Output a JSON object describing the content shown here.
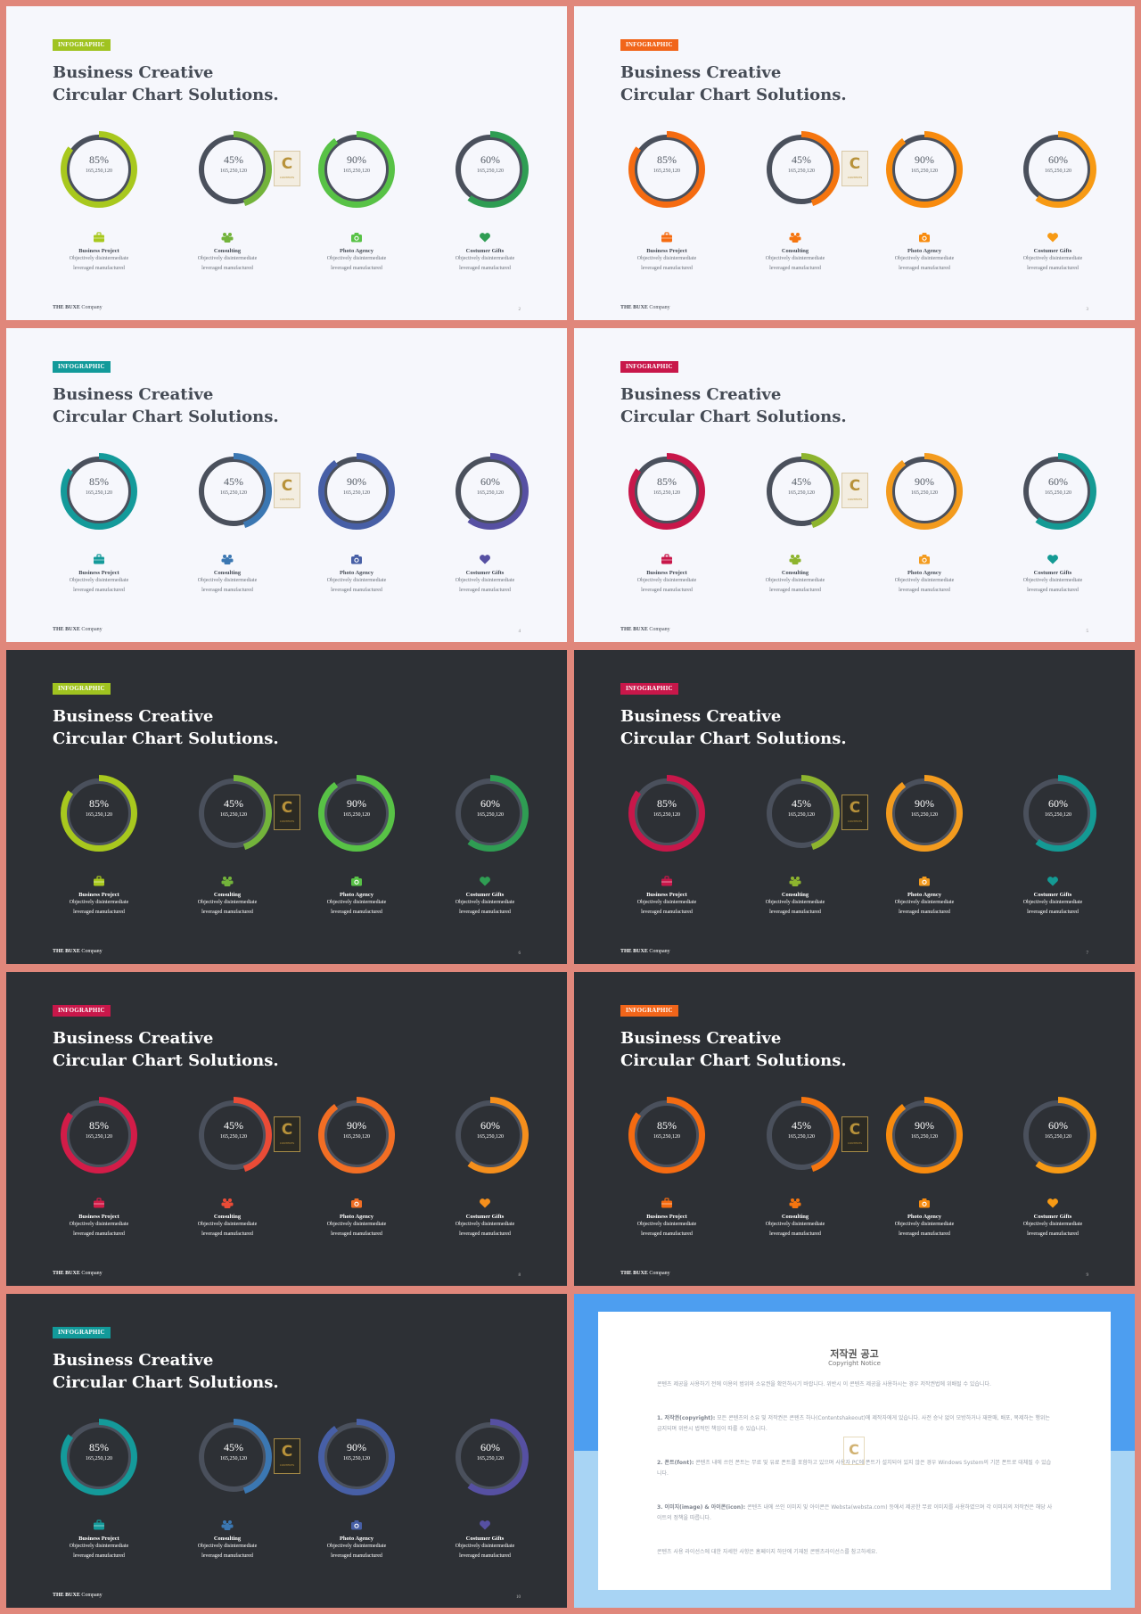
{
  "slides": [
    {
      "badge": "INFOGRAPHIC",
      "theme": "light",
      "page": "2",
      "badge_color": "#a0c320",
      "colors": [
        "#a8c81e",
        "#73b33b",
        "#58c246",
        "#2f9d53"
      ],
      "values": [
        85,
        45,
        90,
        60
      ]
    },
    {
      "badge": "INFOGRAPHIC",
      "theme": "light",
      "page": "3",
      "badge_color": "#f1651a",
      "colors": [
        "#f56b11",
        "#f5750f",
        "#f88b0e",
        "#f79a14"
      ],
      "values": [
        85,
        45,
        90,
        60
      ]
    },
    {
      "badge": "INFOGRAPHIC",
      "theme": "light",
      "page": "4",
      "badge_color": "#129a9a",
      "colors": [
        "#149a9a",
        "#3b77b2",
        "#475fa6",
        "#5650a2"
      ],
      "values": [
        85,
        45,
        90,
        60
      ]
    },
    {
      "badge": "INFOGRAPHIC",
      "theme": "light",
      "page": "5",
      "badge_color": "#c8174a",
      "colors": [
        "#c8174a",
        "#8db42e",
        "#f39b1e",
        "#149a94"
      ],
      "values": [
        85,
        45,
        90,
        60
      ]
    },
    {
      "badge": "INFOGRAPHIC",
      "theme": "dark",
      "page": "6",
      "badge_color": "#a0c320",
      "colors": [
        "#a8c81e",
        "#73b33b",
        "#58c246",
        "#2f9d53"
      ],
      "values": [
        85,
        45,
        90,
        60
      ]
    },
    {
      "badge": "INFOGRAPHIC",
      "theme": "dark",
      "page": "7",
      "badge_color": "#c8174a",
      "colors": [
        "#c8174a",
        "#8db42e",
        "#f39b1e",
        "#149a94"
      ],
      "values": [
        85,
        45,
        90,
        60
      ]
    },
    {
      "badge": "INFOGRAPHIC",
      "theme": "dark",
      "page": "8",
      "badge_color": "#c8174a",
      "colors": [
        "#d21c48",
        "#ea4b36",
        "#f26e24",
        "#f58f1c"
      ],
      "values": [
        85,
        45,
        90,
        60
      ]
    },
    {
      "badge": "INFOGRAPHIC",
      "theme": "dark",
      "page": "9",
      "badge_color": "#f1651a",
      "colors": [
        "#f56b11",
        "#f5750f",
        "#f88b0e",
        "#f79a14"
      ],
      "values": [
        85,
        45,
        90,
        60
      ]
    },
    {
      "badge": "INFOGRAPHIC",
      "theme": "dark",
      "page": "10",
      "badge_color": "#129a9a",
      "colors": [
        "#149a9a",
        "#3b77b2",
        "#475fa6",
        "#5650a2"
      ],
      "values": [
        85,
        45,
        90,
        60
      ]
    }
  ],
  "common": {
    "title_line1": "Business Creative",
    "title_line2": "Circular Chart Solutions.",
    "footer_brand": "THE BUXE",
    "footer_company": "Company",
    "ring_track_color": "#4a505c",
    "logo_letter": "C",
    "logo_word": "CONTENTS",
    "charts": [
      {
        "pct": "85%",
        "sub": "165,250,120"
      },
      {
        "pct": "45%",
        "sub": "165,250,120"
      },
      {
        "pct": "90%",
        "sub": "165,250,120"
      },
      {
        "pct": "60%",
        "sub": "165,250,120"
      }
    ],
    "items": [
      {
        "icon": "briefcase-icon",
        "name": "Business Project",
        "desc1": "Objectively disintermediate",
        "desc2": "leveraged manufactured"
      },
      {
        "icon": "team-icon",
        "name": "Consulting",
        "desc1": "Objectively disintermediate",
        "desc2": "leveraged manufactured"
      },
      {
        "icon": "camera-icon",
        "name": "Photo Agency",
        "desc1": "Objectively disintermediate",
        "desc2": "leveraged manufactured"
      },
      {
        "icon": "heart-icon",
        "name": "Costumer Gifts",
        "desc1": "Objectively disintermediate",
        "desc2": "leveraged manufactured"
      }
    ]
  },
  "notice": {
    "title": "저작권 공고",
    "subtitle": "Copyright Notice",
    "intro": "콘텐츠 제공을 사용하기 전에 이용의 범위와 소유권을 확인하시기 바랍니다. 위반시 이 콘텐츠 제공을 사용하시는 경우 저작권법에 위배될 수 있습니다.",
    "p1_head": "1. 저작권(copyright):",
    "p1_body": "모든 콘텐츠의 소유 및 저작권은 콘텐츠 하나(Contentshakeout)에 제작자에게 있습니다. 사전 승낙 없이 모방하거나 재판매, 배포, 복제하는 행위는 금지되며 위반시 법적인 책임이 따를 수 있습니다.",
    "p2_head": "2. 폰트(font):",
    "p2_body": "콘텐츠 내에 쓰인 폰트는 무료 및 유료 폰트를 포함하고 있으며 사용자 PC에 폰트가 설치되어 있지 않은 경우 Windows System의 기본 폰트로 대체될 수 있습니다.",
    "p3_head": "3. 이미지(image) & 아이콘(icon):",
    "p3_body": "콘텐츠 내에 쓰인 이미지 및 아이콘은 Websta(websta.com) 등에서 제공한 무료 이미지를 사용하였으며 각 이미지의 저작권은 해당 사이트의 정책을 따릅니다.",
    "closing": "콘텐츠 사용 라이선스에 대한 자세한 사항은 홈페이지 하단에 기재된 콘텐츠라이선스를 참고하세요."
  }
}
